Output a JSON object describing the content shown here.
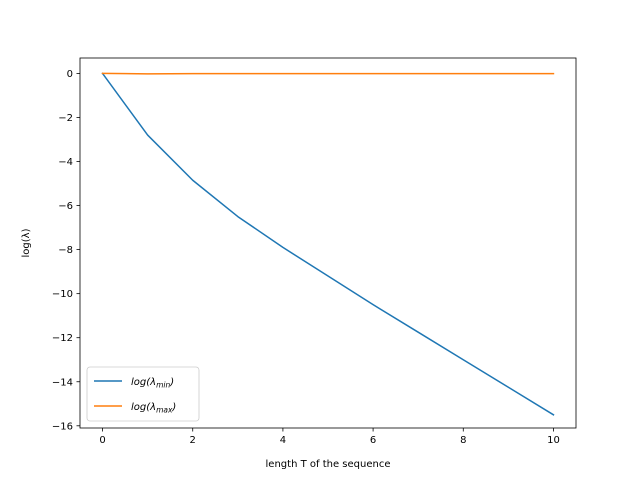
{
  "chart_data": {
    "type": "line",
    "title": "",
    "xlabel": "length T of the sequence",
    "ylabel": "log(λ)",
    "xlim": [
      -0.5,
      10.5
    ],
    "ylim": [
      -16.1,
      0.7
    ],
    "xticks": [
      0,
      2,
      4,
      6,
      8,
      10
    ],
    "yticks": [
      0,
      -2,
      -4,
      -6,
      -8,
      -10,
      -12,
      -14,
      -16
    ],
    "xtick_labels": [
      "0",
      "2",
      "4",
      "6",
      "8",
      "10"
    ],
    "ytick_labels": [
      "0",
      "−2",
      "−4",
      "−6",
      "−8",
      "−10",
      "−12",
      "−14",
      "−16"
    ],
    "grid": false,
    "legend_position": "lower-left",
    "series": [
      {
        "name": "log(λmin)",
        "name_base": "log(λ",
        "name_sub": "min",
        "name_close": ")",
        "color": "#1f77b4",
        "x": [
          0,
          1,
          2,
          3,
          4,
          5,
          6,
          7,
          8,
          9,
          10
        ],
        "y": [
          0,
          -2.8,
          -4.85,
          -6.5,
          -7.9,
          -9.2,
          -10.5,
          -11.75,
          -13.0,
          -14.25,
          -15.5
        ]
      },
      {
        "name": "log(λmax)",
        "name_base": "log(λ",
        "name_sub": "max",
        "name_close": ")",
        "color": "#ff7f0e",
        "x": [
          0,
          1,
          2,
          3,
          4,
          5,
          6,
          7,
          8,
          9,
          10
        ],
        "y": [
          0,
          -0.02,
          -0.01,
          -0.01,
          -0.01,
          -0.01,
          -0.01,
          -0.01,
          -0.01,
          -0.01,
          -0.01
        ]
      }
    ]
  }
}
